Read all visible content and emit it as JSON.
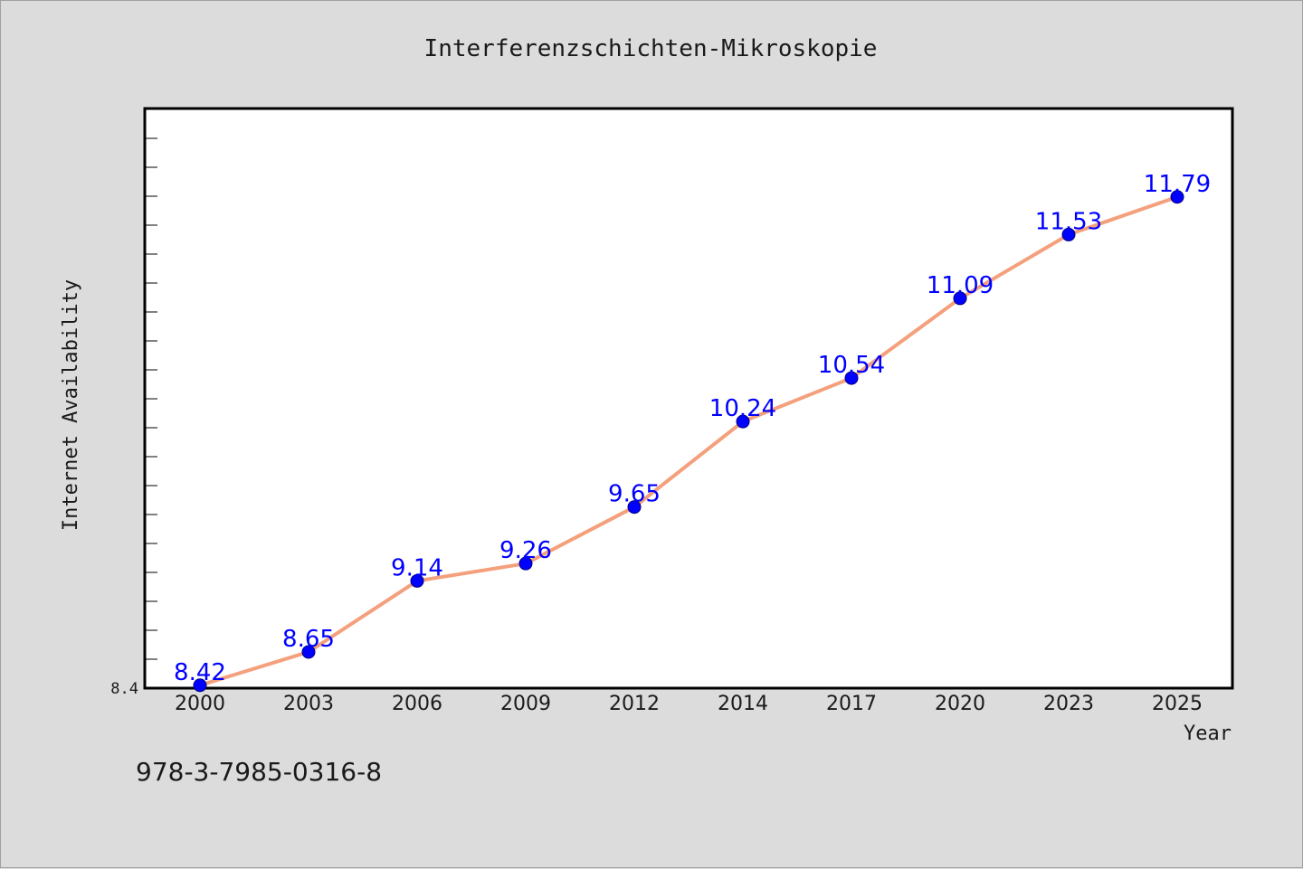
{
  "isbn": "978-3-7985-0316-8",
  "colors": {
    "background": "#dcdcdc",
    "plot_background": "#ffffff",
    "line": "#f4a07c",
    "marker": "#0000ff",
    "data_label": "#0000ff"
  },
  "chart_data": {
    "type": "line",
    "title": "Interferenzschichten-Mikroskopie",
    "xlabel": "Year",
    "ylabel": "Internet Availability",
    "categories": [
      "2000",
      "2003",
      "2006",
      "2009",
      "2012",
      "2014",
      "2017",
      "2020",
      "2023",
      "2025"
    ],
    "series": [
      {
        "values": [
          8.42,
          8.65,
          9.14,
          9.26,
          9.65,
          10.24,
          10.54,
          11.09,
          11.53,
          11.79
        ],
        "labels": [
          "8.42",
          "8.65",
          "9.14",
          "9.26",
          "9.65",
          "10.24",
          "10.54",
          "11.09",
          "11.53",
          "11.79"
        ]
      }
    ],
    "y_tick_labels": [
      "8.4"
    ],
    "ylim": [
      8.4,
      12.4
    ],
    "grid": false,
    "legend": "none"
  }
}
